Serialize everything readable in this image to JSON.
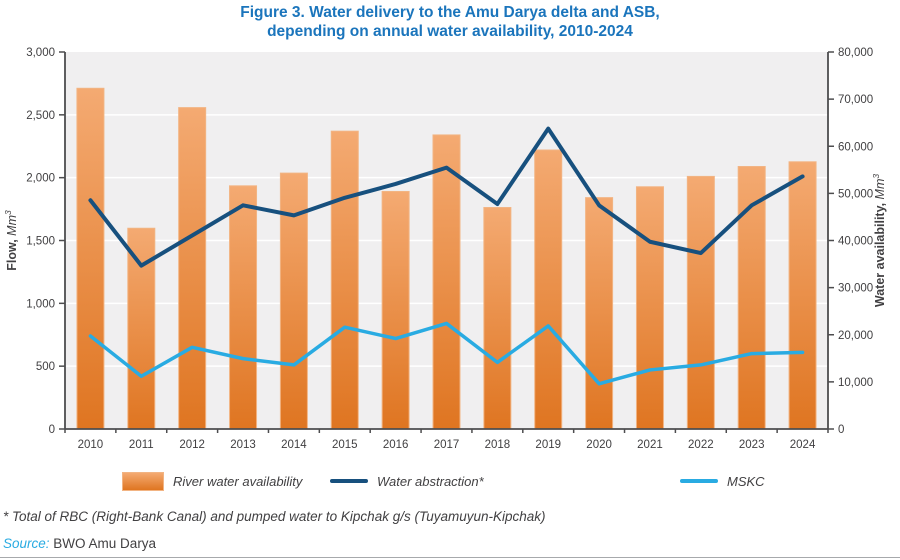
{
  "title": {
    "line1": "Figure 3. Water delivery to the Amu Darya delta and ASB,",
    "line2": "depending on annual water availability, 2010-2024"
  },
  "chart_data": {
    "type": "combo-bar-line",
    "title": "Figure 3. Water delivery to the Amu Darya delta and ASB, depending on annual water availability, 2010-2024",
    "categories": [
      "2010",
      "2011",
      "2012",
      "2013",
      "2014",
      "2015",
      "2016",
      "2017",
      "2018",
      "2019",
      "2020",
      "2021",
      "2022",
      "2023",
      "2024"
    ],
    "series": [
      {
        "name": "River water availability",
        "type": "bar",
        "axis": "right",
        "values": [
          72300,
          42600,
          68200,
          51600,
          54300,
          63200,
          50400,
          62400,
          47000,
          59200,
          49100,
          51400,
          53600,
          55700,
          56700
        ]
      },
      {
        "name": "Water abstraction*",
        "type": "line",
        "axis": "left",
        "values": [
          1820,
          1300,
          1540,
          1780,
          1700,
          1840,
          1950,
          2080,
          1790,
          2390,
          1780,
          1490,
          1400,
          1780,
          2010
        ]
      },
      {
        "name": "MSKC",
        "type": "line",
        "axis": "left",
        "values": [
          740,
          420,
          650,
          560,
          510,
          810,
          720,
          840,
          530,
          820,
          360,
          470,
          510,
          600,
          610
        ]
      }
    ],
    "left_axis": {
      "title": {
        "bold": "Flow,",
        "italic": "Mm",
        "sup": "3"
      },
      "min": 0,
      "max": 3000,
      "step": 500,
      "tick_labels": [
        "0",
        "500",
        "1,000",
        "1,500",
        "2,000",
        "2,500",
        "3,000"
      ]
    },
    "right_axis": {
      "title": {
        "bold": "Water availability,",
        "italic": "Mm",
        "sup": "3"
      },
      "min": 0,
      "max": 80000,
      "step": 10000,
      "tick_labels": [
        "0",
        "10,000",
        "20,000",
        "30,000",
        "40,000",
        "50,000",
        "60,000",
        "70,000",
        "80,000"
      ]
    },
    "grid": "horizontal white gridlines on light-gray plot background",
    "legend_position": "bottom"
  },
  "legend": {
    "items": [
      {
        "label": "River water availability",
        "swatch": "bar"
      },
      {
        "label": "Water abstraction*",
        "swatch": "line-dark"
      },
      {
        "label": "MSKC",
        "swatch": "line-light"
      }
    ]
  },
  "footnote": "* Total of RBC (Right-Bank Canal) and pumped water to Kipchak g/s (Tuyamuyun-Kipchak)",
  "source": {
    "label": "Source:",
    "text": "BWO Amu Darya"
  },
  "colors": {
    "title_blue": "#1B75BC",
    "bar_top": "#F4AA72",
    "bar_bottom": "#DF7521",
    "bar_stroke": "#F2B483",
    "dark_line": "#17507E",
    "light_line": "#29ABE2",
    "plot_bg": "#F0EFF0",
    "gridline": "#FFFFFF",
    "axis": "#4D4D4F",
    "text": "#414042",
    "divider": "#A7A9AC"
  }
}
